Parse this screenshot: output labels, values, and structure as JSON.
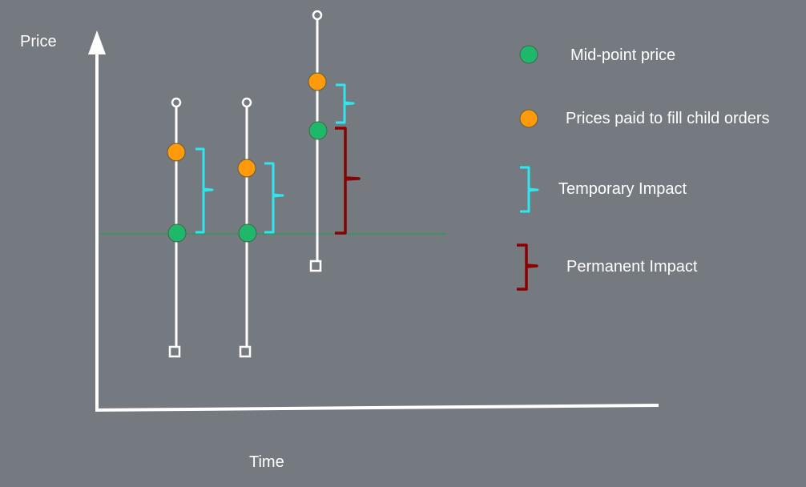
{
  "axes": {
    "y_label": "Price",
    "x_label": "Time"
  },
  "legend": {
    "items": [
      {
        "key": "mid",
        "label": "Mid-point price",
        "color": "#1fb86a"
      },
      {
        "key": "paid",
        "label": "Prices paid to fill child orders",
        "color": "#ff9a0a"
      },
      {
        "key": "temporary",
        "label": "Temporary Impact",
        "color": "#2de6f0"
      },
      {
        "key": "permanent",
        "label": "Permanent Impact",
        "color": "#8b0000"
      }
    ]
  },
  "colors": {
    "background": "#757a80",
    "axis": "#ffffff",
    "baseline": "#22a050",
    "mid_point": "#1fb86a",
    "paid": "#ff9a0a",
    "temporary_impact": "#2de6f0",
    "permanent_impact": "#8b0000"
  }
}
